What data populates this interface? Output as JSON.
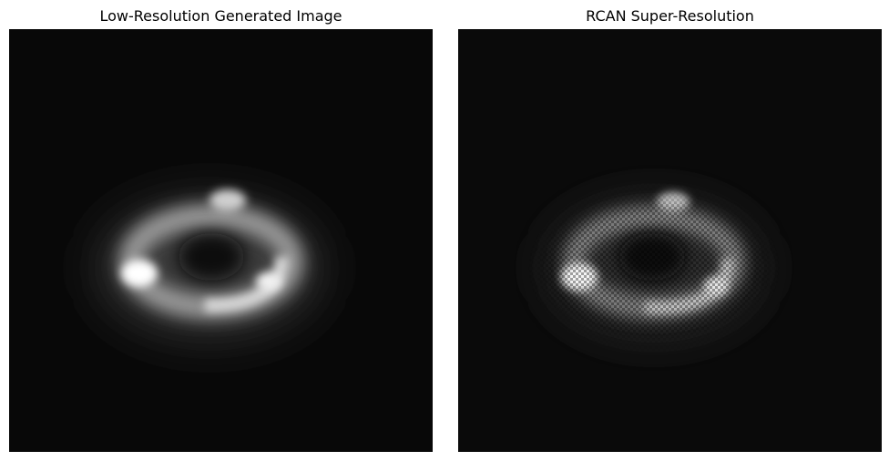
{
  "panels": [
    {
      "title": "Low-Resolution Generated Image",
      "image": "low-resolution-lensing-ring",
      "background_color": "#080808"
    },
    {
      "title": "RCAN Super-Resolution",
      "image": "rcan-super-resolved-lensing-ring",
      "background_color": "#0a0a0a"
    }
  ]
}
